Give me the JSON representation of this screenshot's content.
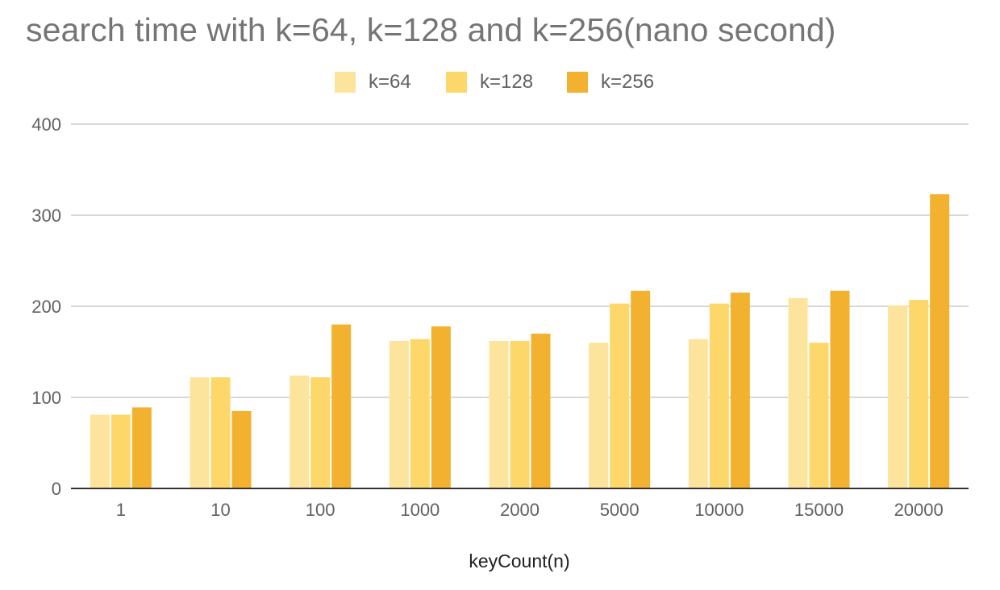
{
  "chart_data": {
    "type": "bar",
    "title": "search time with k=64, k=128 and k=256(nano second)",
    "xlabel": "keyCount(n)",
    "ylabel": "",
    "categories": [
      "1",
      "10",
      "100",
      "1000",
      "2000",
      "5000",
      "10000",
      "15000",
      "20000"
    ],
    "series": [
      {
        "name": "k=64",
        "color": "#FDE49C",
        "values": [
          81,
          122,
          124,
          162,
          162,
          160,
          164,
          209,
          201
        ]
      },
      {
        "name": "k=128",
        "color": "#FDD76A",
        "values": [
          81,
          122,
          122,
          164,
          162,
          203,
          203,
          160,
          207
        ]
      },
      {
        "name": "k=256",
        "color": "#F2B12E",
        "values": [
          89,
          85,
          180,
          178,
          170,
          217,
          215,
          217,
          323
        ]
      }
    ],
    "ylim": [
      0,
      400
    ],
    "yticks": [
      0,
      100,
      200,
      300,
      400
    ],
    "grid": true,
    "legend_position": "top-center"
  }
}
